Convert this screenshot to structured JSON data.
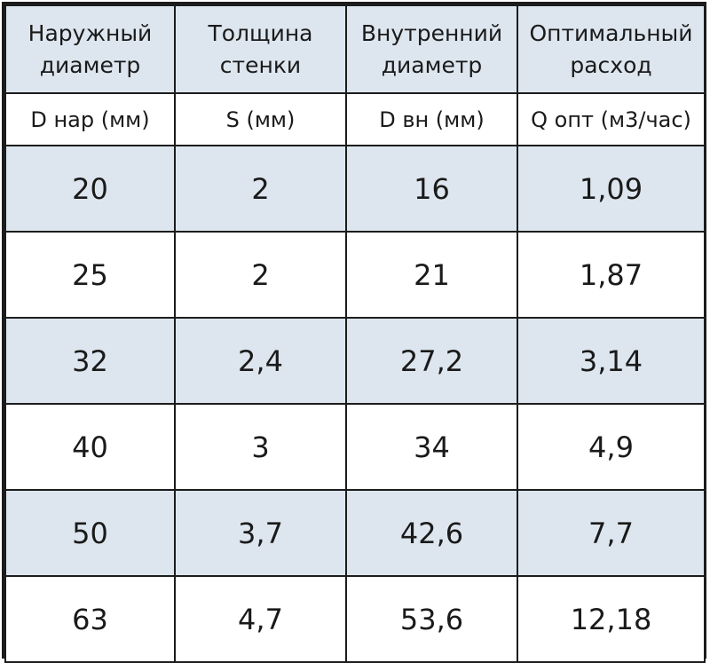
{
  "columns": [
    {
      "title_line1": "Наружный",
      "title_line2": "диаметр",
      "unit": "D нар (мм)"
    },
    {
      "title_line1": "Толщина",
      "title_line2": "стенки",
      "unit": "S (мм)"
    },
    {
      "title_line1": "Внутренний",
      "title_line2": "диаметр",
      "unit": "D вн (мм)"
    },
    {
      "title_line1": "Оптимальный",
      "title_line2": "расход",
      "unit": "Q опт (м3/час)"
    }
  ],
  "rows": [
    [
      "20",
      "2",
      "16",
      "1,09"
    ],
    [
      "25",
      "2",
      "21",
      "1,87"
    ],
    [
      "32",
      "2,4",
      "27,2",
      "3,14"
    ],
    [
      "40",
      "3",
      "34",
      "4,9"
    ],
    [
      "50",
      "3,7",
      "42,6",
      "7,7"
    ],
    [
      "63",
      "4,7",
      "53,6",
      "12,18"
    ]
  ],
  "colors": {
    "shaded_row": "#dde6ee",
    "plain_row": "#ffffff",
    "border": "#1c1c1c",
    "text": "#1a1a1a"
  }
}
